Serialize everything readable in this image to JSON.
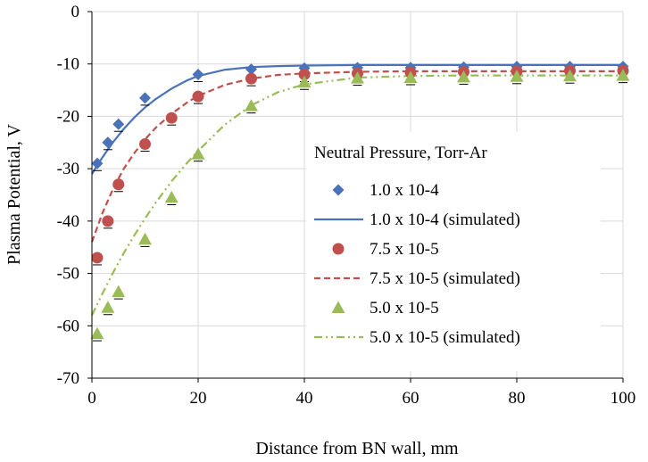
{
  "chart_data": {
    "type": "scatter",
    "title": "",
    "xlabel": "Distance from BN wall, mm",
    "ylabel": "Plasma Potential, V",
    "xlim": [
      0,
      100
    ],
    "ylim": [
      -70,
      0
    ],
    "x_ticks": [
      "0",
      "20",
      "40",
      "60",
      "80",
      "100"
    ],
    "y_ticks": [
      "0",
      "-10",
      "-20",
      "-30",
      "-40",
      "-50",
      "-60",
      "-70"
    ],
    "grid": "vertical and horizontal major gridlines",
    "legend_title": "Neutral Pressure, Torr-Ar",
    "legend_position": "center-right",
    "series": [
      {
        "name": "1.0 x 10-4",
        "kind": "markers",
        "marker": "diamond",
        "color": "#4a72b8",
        "x": [
          1,
          3,
          5,
          10,
          20,
          30,
          40,
          50,
          60,
          70,
          80,
          90,
          100
        ],
        "y": [
          -29,
          -25,
          -21.5,
          -16.5,
          -12,
          -11,
          -10.8,
          -10.7,
          -10.7,
          -10.6,
          -10.5,
          -10.5,
          -10.5
        ]
      },
      {
        "name": "1.0 x 10-4 (simulated)",
        "kind": "line",
        "dash": "solid",
        "color": "#4a72b8",
        "x": [
          0,
          2,
          4,
          6,
          8,
          10,
          12,
          15,
          18,
          20,
          25,
          30,
          35,
          40,
          50,
          60,
          70,
          80,
          90,
          100
        ],
        "y": [
          -31,
          -27.8,
          -24.9,
          -22.4,
          -20.2,
          -18.3,
          -16.7,
          -14.7,
          -13.1,
          -12.3,
          -11.1,
          -10.6,
          -10.4,
          -10.3,
          -10.2,
          -10.2,
          -10.2,
          -10.2,
          -10.2,
          -10.2
        ]
      },
      {
        "name": "7.5 x 10-5",
        "kind": "markers",
        "marker": "circle",
        "color": "#c0504d",
        "x": [
          1,
          3,
          5,
          10,
          15,
          20,
          30,
          40,
          50,
          60,
          70,
          80,
          90,
          100
        ],
        "y": [
          -47,
          -40,
          -33,
          -25.3,
          -20.3,
          -16.2,
          -12.8,
          -12,
          -11.8,
          -11.6,
          -11.5,
          -11.4,
          -11.3,
          -11.3
        ]
      },
      {
        "name": "7.5 x 10-5 (simulated)",
        "kind": "line",
        "dash": "dashed",
        "color": "#c0504d",
        "x": [
          0,
          2,
          4,
          6,
          8,
          10,
          12,
          15,
          18,
          20,
          25,
          30,
          35,
          40,
          50,
          60,
          70,
          80,
          90,
          100
        ],
        "y": [
          -44,
          -38.4,
          -33.8,
          -30,
          -27,
          -24.4,
          -22.2,
          -19.5,
          -17.3,
          -16.1,
          -14,
          -12.8,
          -12.1,
          -11.8,
          -11.5,
          -11.4,
          -11.4,
          -11.4,
          -11.4,
          -11.4
        ]
      },
      {
        "name": "5.0 x 10-5",
        "kind": "markers",
        "marker": "triangle",
        "color": "#9bbb59",
        "x": [
          1,
          3,
          5,
          10,
          15,
          20,
          30,
          40,
          50,
          60,
          70,
          80,
          90,
          100
        ],
        "y": [
          -61.5,
          -56.5,
          -53.5,
          -43.5,
          -35.5,
          -27.2,
          -18,
          -13.5,
          -12.7,
          -12.6,
          -12.5,
          -12.4,
          -12.3,
          -12.2
        ]
      },
      {
        "name": "5.0 x 10-5 (simulated)",
        "kind": "line",
        "dash": "dash-dot-dot",
        "color": "#9bbb59",
        "x": [
          0,
          2,
          4,
          6,
          8,
          10,
          12,
          15,
          18,
          20,
          25,
          30,
          35,
          40,
          50,
          60,
          70,
          80,
          90,
          100
        ],
        "y": [
          -58,
          -53.8,
          -49.8,
          -46.1,
          -42.7,
          -39.5,
          -36.5,
          -32.4,
          -28.8,
          -26.6,
          -21.6,
          -17.9,
          -15.4,
          -13.9,
          -12.6,
          -12.3,
          -12.2,
          -12.2,
          -12.2,
          -12.2
        ]
      }
    ]
  }
}
